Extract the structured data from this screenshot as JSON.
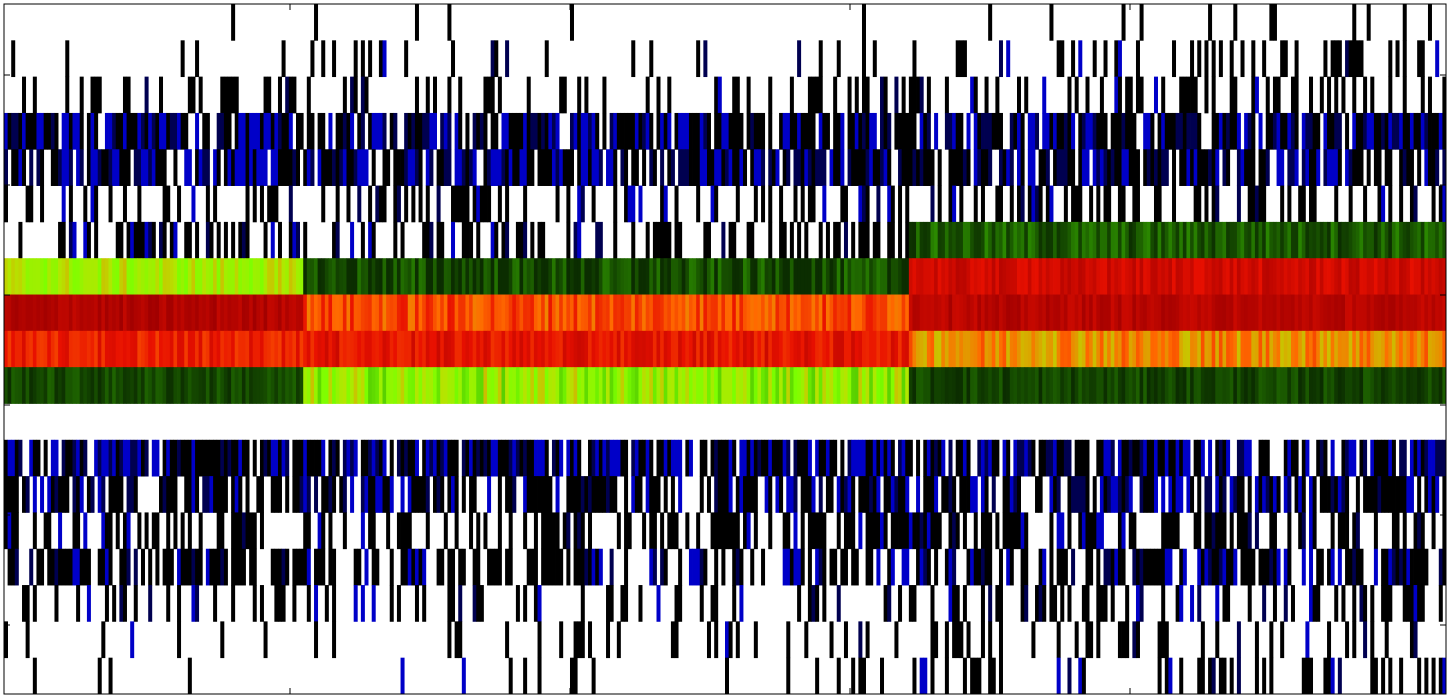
{
  "chart_data": {
    "type": "heatmap",
    "title": "",
    "xlabel": "",
    "ylabel": "",
    "rows": 19,
    "columns": 400,
    "column_groups": [
      {
        "start": 0,
        "end": 83
      },
      {
        "start": 83,
        "end": 251
      },
      {
        "start": 251,
        "end": 400
      }
    ],
    "row_profiles": [
      {
        "row": 0,
        "groups": [
          [
            0.02,
            0.0
          ],
          [
            0.03,
            0.0
          ],
          [
            0.06,
            0.0
          ]
        ]
      },
      {
        "row": 1,
        "groups": [
          [
            0.08,
            0.01
          ],
          [
            0.12,
            0.03
          ],
          [
            0.18,
            0.05
          ]
        ]
      },
      {
        "row": 2,
        "groups": [
          [
            0.22,
            0.02
          ],
          [
            0.26,
            0.05
          ],
          [
            0.32,
            0.06
          ]
        ]
      },
      {
        "row": 3,
        "groups": [
          [
            0.4,
            0.45
          ],
          [
            0.42,
            0.4
          ],
          [
            0.42,
            0.4
          ]
        ]
      },
      {
        "row": 4,
        "groups": [
          [
            0.42,
            0.4
          ],
          [
            0.42,
            0.38
          ],
          [
            0.4,
            0.4
          ]
        ]
      },
      {
        "row": 5,
        "groups": [
          [
            0.3,
            0.06
          ],
          [
            0.34,
            0.08
          ],
          [
            0.36,
            0.1
          ]
        ]
      },
      {
        "row": 6,
        "groups": [
          [
            0.34,
            0.1
          ],
          [
            0.34,
            0.1
          ],
          [
            0.38,
            0.45
          ]
        ]
      },
      {
        "row": 7,
        "groups": [
          [
            0.4,
            0.4
          ],
          [
            0.42,
            0.4
          ],
          [
            0.0,
            0.0
          ]
        ]
      },
      {
        "row": 8,
        "groups": [
          [
            0.0,
            0.0
          ],
          [
            0.0,
            0.0
          ],
          [
            0.0,
            0.0
          ]
        ]
      },
      {
        "row": 9,
        "groups": [
          [
            0.0,
            0.0
          ],
          [
            0.0,
            0.0
          ],
          [
            0.0,
            0.0
          ]
        ]
      },
      {
        "row": 10,
        "groups": [
          [
            0.0,
            0.0
          ],
          [
            0.0,
            0.0
          ],
          [
            0.0,
            0.0
          ]
        ]
      },
      {
        "row": 11,
        "groups": [
          [
            0.0,
            0.0
          ],
          [
            0.0,
            0.0
          ],
          [
            0.0,
            0.0
          ]
        ]
      },
      {
        "row": 12,
        "groups": [
          [
            0.4,
            0.45
          ],
          [
            0.4,
            0.45
          ],
          [
            0.4,
            0.42
          ]
        ]
      },
      {
        "row": 13,
        "groups": [
          [
            0.4,
            0.3
          ],
          [
            0.4,
            0.32
          ],
          [
            0.4,
            0.35
          ]
        ]
      },
      {
        "row": 14,
        "groups": [
          [
            0.4,
            0.08
          ],
          [
            0.4,
            0.06
          ],
          [
            0.4,
            0.1
          ]
        ]
      },
      {
        "row": 15,
        "groups": [
          [
            0.42,
            0.12
          ],
          [
            0.4,
            0.14
          ],
          [
            0.42,
            0.2
          ]
        ]
      },
      {
        "row": 16,
        "groups": [
          [
            0.24,
            0.06
          ],
          [
            0.28,
            0.08
          ],
          [
            0.32,
            0.12
          ]
        ]
      },
      {
        "row": 17,
        "groups": [
          [
            0.1,
            0.02
          ],
          [
            0.14,
            0.03
          ],
          [
            0.28,
            0.06
          ]
        ]
      },
      {
        "row": 18,
        "groups": [
          [
            0.03,
            0.0
          ],
          [
            0.05,
            0.01
          ],
          [
            0.22,
            0.08
          ]
        ]
      }
    ],
    "expression_rows": [
      {
        "row": 6,
        "groups": [
          null,
          null,
          {
            "base": 0.1,
            "spread": 0.1
          }
        ]
      },
      {
        "row": 7,
        "groups": [
          {
            "base": 0.55,
            "spread": 0.1
          },
          {
            "base": 0.05,
            "spread": 0.12
          },
          {
            "base": 0.92,
            "spread": 0.04
          }
        ]
      },
      {
        "row": 8,
        "groups": [
          {
            "base": 0.97,
            "spread": 0.03
          },
          {
            "base": 0.8,
            "spread": 0.08
          },
          {
            "base": 0.96,
            "spread": 0.03
          }
        ]
      },
      {
        "row": 9,
        "groups": [
          {
            "base": 0.86,
            "spread": 0.05
          },
          {
            "base": 0.88,
            "spread": 0.05
          },
          {
            "base": 0.72,
            "spread": 0.08
          }
        ]
      },
      {
        "row": 10,
        "groups": [
          {
            "base": 0.06,
            "spread": 0.06
          },
          {
            "base": 0.5,
            "spread": 0.15
          },
          {
            "base": 0.05,
            "spread": 0.06
          }
        ]
      }
    ],
    "colormap": {
      "empty": "#ffffff",
      "black": "#000000",
      "blue": "#0000c8",
      "navy": "#000050",
      "dark_green": "#0b2d00",
      "green": "#33a000",
      "lime": "#7cff00",
      "yellow_green": "#b4e600",
      "orange": "#ff6a00",
      "red": "#e81000",
      "dark_red": "#a00000"
    },
    "grid": false,
    "legend": "none"
  }
}
